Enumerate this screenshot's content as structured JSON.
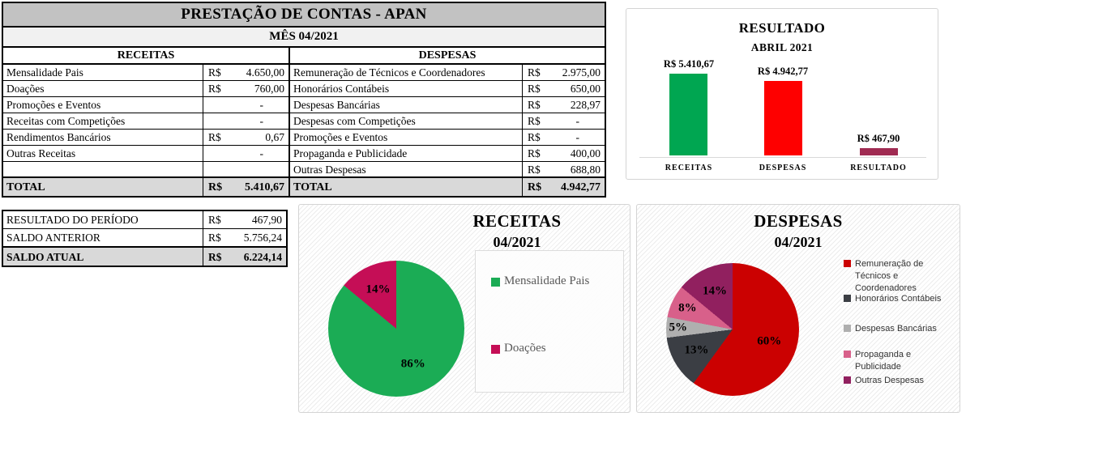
{
  "main_table": {
    "title": "PRESTAÇÃO DE CONTAS - APAN",
    "subtitle": "MÊS 04/2021",
    "receitas_header": "RECEITAS",
    "despesas_header": "DESPESAS",
    "rows": [
      {
        "r_label": "Mensalidade Pais",
        "r_cur": "R$",
        "r_val": "4.650,00",
        "d_label": "Remuneração de Técnicos e Coordenadores",
        "d_cur": "R$",
        "d_val": "2.975,00"
      },
      {
        "r_label": "Doações",
        "r_cur": "R$",
        "r_val": "760,00",
        "d_label": "Honorários Contábeis",
        "d_cur": "R$",
        "d_val": "650,00"
      },
      {
        "r_label": "Promoções e Eventos",
        "r_cur": "",
        "r_val": "-",
        "d_label": "Despesas Bancárias",
        "d_cur": "R$",
        "d_val": "228,97"
      },
      {
        "r_label": "Receitas com Competições",
        "r_cur": "",
        "r_val": "-",
        "d_label": "Despesas com Competições",
        "d_cur": "R$",
        "d_val": "-"
      },
      {
        "r_label": "Rendimentos Bancários",
        "r_cur": "R$",
        "r_val": "0,67",
        "d_label": "Promoções e Eventos",
        "d_cur": "R$",
        "d_val": "-"
      },
      {
        "r_label": "Outras Receitas",
        "r_cur": "",
        "r_val": "-",
        "d_label": "Propaganda e Publicidade",
        "d_cur": "R$",
        "d_val": "400,00"
      },
      {
        "r_label": "",
        "r_cur": "",
        "r_val": "",
        "d_label": "Outras Despesas",
        "d_cur": "R$",
        "d_val": "688,80"
      }
    ],
    "total_label": "TOTAL",
    "receitas_total_cur": "R$",
    "receitas_total": "5.410,67",
    "despesas_total_cur": "R$",
    "despesas_total": "4.942,77"
  },
  "summary_table": {
    "rows": [
      {
        "label": "RESULTADO DO PERÍODO",
        "cur": "R$",
        "value": "467,90"
      },
      {
        "label": "SALDO ANTERIOR",
        "cur": "R$",
        "value": "5.756,24"
      },
      {
        "label": "SALDO ATUAL",
        "cur": "R$",
        "value": "6.224,14"
      }
    ]
  },
  "chart_data": [
    {
      "type": "bar",
      "title": "RESULTADO",
      "subtitle": "ABRIL 2021",
      "categories": [
        "RECEITAS",
        "DESPESAS",
        "RESULTADO"
      ],
      "values": [
        5410.67,
        4942.77,
        467.9
      ],
      "data_labels": [
        "R$ 5.410,67",
        "R$ 4.942,77",
        "R$ 467,90"
      ],
      "colors": [
        "#00A651",
        "#FE0000",
        "#A02B52"
      ],
      "ylim": [
        0,
        5410.67
      ],
      "grid": false,
      "legend": false
    },
    {
      "type": "pie",
      "title": "RECEITAS",
      "subtitle": "04/2021",
      "labels": [
        "Mensalidade Pais",
        "Doações"
      ],
      "values": [
        86,
        14
      ],
      "pct_labels": [
        "86%",
        "14%"
      ],
      "colors": [
        "#1BAC55",
        "#C50E56"
      ],
      "legend_position": "right",
      "start_angle": 0,
      "direction": "clockwise"
    },
    {
      "type": "pie",
      "title": "DESPESAS",
      "subtitle": "04/2021",
      "labels": [
        "Remuneração de Técnicos e Coordenadores",
        "Honorários Contábeis",
        "Despesas Bancárias",
        "Propaganda e Publicidade",
        "Outras Despesas"
      ],
      "values": [
        60,
        13,
        5,
        8,
        14
      ],
      "pct_labels": [
        "60%",
        "13%",
        "5%",
        "8%",
        "14%"
      ],
      "colors": [
        "#CB0101",
        "#3B3E44",
        "#AFAFAF",
        "#D8608A",
        "#91205F"
      ],
      "legend_position": "right",
      "start_angle": 0,
      "direction": "clockwise"
    }
  ]
}
